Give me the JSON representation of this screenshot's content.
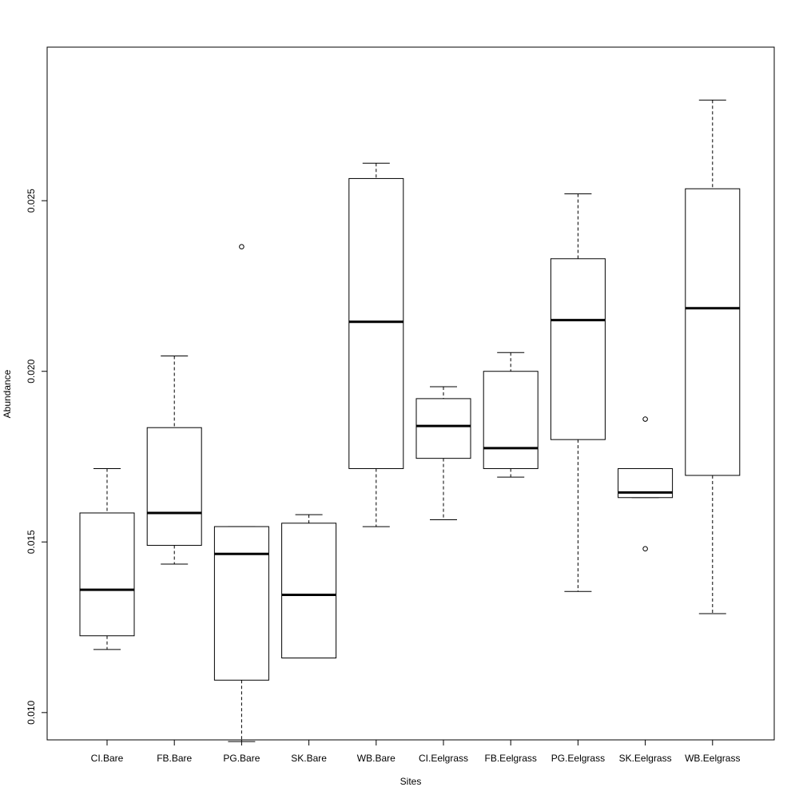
{
  "chart_data": {
    "type": "boxplot",
    "title": "",
    "xlabel": "Sites",
    "ylabel": "Abundance",
    "ylim": [
      0.0092,
      0.0295
    ],
    "yticks": [
      0.01,
      0.015,
      0.02,
      0.025
    ],
    "ytick_labels": [
      "0.010",
      "0.015",
      "0.020",
      "0.025"
    ],
    "grid": false,
    "legend": "none",
    "categories": [
      "CI.Bare",
      "FB.Bare",
      "PG.Bare",
      "SK.Bare",
      "WB.Bare",
      "CI.Eelgrass",
      "FB.Eelgrass",
      "PG.Eelgrass",
      "SK.Eelgrass",
      "WB.Eelgrass"
    ],
    "boxes": [
      {
        "whisker_low": 0.01185,
        "q1": 0.01225,
        "median": 0.0136,
        "q3": 0.01585,
        "whisker_high": 0.01715,
        "outliers": []
      },
      {
        "whisker_low": 0.01435,
        "q1": 0.0149,
        "median": 0.01585,
        "q3": 0.01835,
        "whisker_high": 0.02045,
        "outliers": []
      },
      {
        "whisker_low": 0.00915,
        "q1": 0.01095,
        "median": 0.01465,
        "q3": 0.01545,
        "whisker_high": 0.01545,
        "outliers": [
          0.02365
        ]
      },
      {
        "whisker_low": 0.0116,
        "q1": 0.0116,
        "median": 0.01345,
        "q3": 0.01555,
        "whisker_high": 0.0158,
        "outliers": []
      },
      {
        "whisker_low": 0.01545,
        "q1": 0.01715,
        "median": 0.02145,
        "q3": 0.02565,
        "whisker_high": 0.0261,
        "outliers": []
      },
      {
        "whisker_low": 0.01565,
        "q1": 0.01745,
        "median": 0.0184,
        "q3": 0.0192,
        "whisker_high": 0.01955,
        "outliers": []
      },
      {
        "whisker_low": 0.0169,
        "q1": 0.01715,
        "median": 0.01775,
        "q3": 0.02,
        "whisker_high": 0.02055,
        "outliers": []
      },
      {
        "whisker_low": 0.01355,
        "q1": 0.018,
        "median": 0.0215,
        "q3": 0.0233,
        "whisker_high": 0.0252,
        "outliers": []
      },
      {
        "whisker_low": 0.0163,
        "q1": 0.0163,
        "median": 0.01645,
        "q3": 0.01715,
        "whisker_high": 0.01715,
        "outliers": [
          0.0186,
          0.0148
        ]
      },
      {
        "whisker_low": 0.0129,
        "q1": 0.01695,
        "median": 0.02185,
        "q3": 0.02535,
        "whisker_high": 0.02795,
        "outliers": []
      }
    ],
    "colors": {
      "axis": "#000000",
      "box_fill": "#ffffff",
      "stroke": "#000000",
      "background": "#ffffff"
    }
  }
}
